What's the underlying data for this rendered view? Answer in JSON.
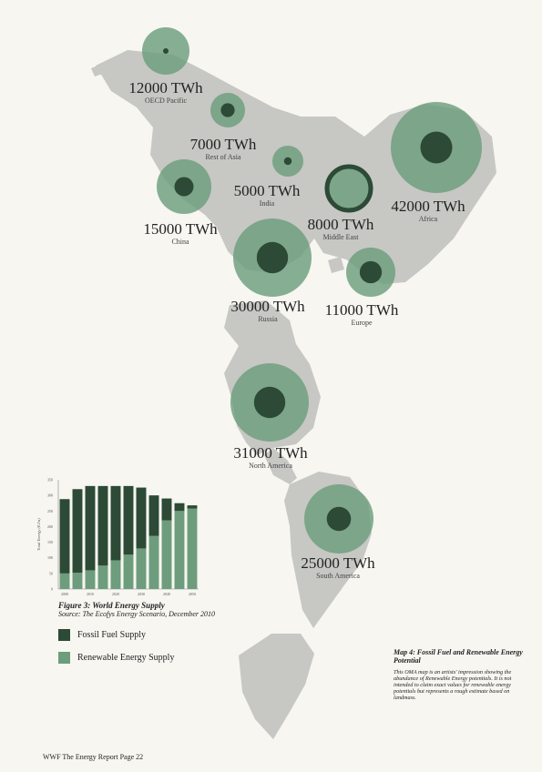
{
  "colors": {
    "background": "#f7f6f1",
    "land": "#c7c7c4",
    "renewable": "#6d9d7c",
    "fossil": "#2c4a36"
  },
  "map": {
    "regions": [
      {
        "id": "oecd-pacific",
        "value": "12000 TWh",
        "name": "OECD Pacific",
        "renewable_share": 0.1
      },
      {
        "id": "rest-of-asia",
        "value": "7000 TWh",
        "name": "Rest of Asia",
        "renewable_share": 0.4
      },
      {
        "id": "india",
        "value": "5000 TWh",
        "name": "India",
        "renewable_share": 0.25
      },
      {
        "id": "china",
        "value": "15000 TWh",
        "name": "China",
        "renewable_share": 0.35
      },
      {
        "id": "middle-east",
        "value": "8000 TWh",
        "name": "Middle East",
        "renewable_share": 0.8
      },
      {
        "id": "africa",
        "value": "42000 TWh",
        "name": "Africa",
        "renewable_share": 0.35
      },
      {
        "id": "russia",
        "value": "30000 TWh",
        "name": "Russia",
        "renewable_share": 0.4
      },
      {
        "id": "europe",
        "value": "11000 TWh",
        "name": "Europe",
        "renewable_share": 0.45
      },
      {
        "id": "north-america",
        "value": "31000 TWh",
        "name": "North America",
        "renewable_share": 0.4
      },
      {
        "id": "south-america",
        "value": "25000 TWh",
        "name": "South America",
        "renewable_share": 0.35
      }
    ]
  },
  "chart_data": {
    "type": "bar",
    "title": "Figure 3: World Energy Supply",
    "subtitle": "Source: The Ecofys Energy Scenario, December 2010",
    "ylabel": "Total Energy (EJ/a)",
    "xlabel": "",
    "ylim": [
      0,
      350
    ],
    "yticks": [
      "0",
      "50",
      "100",
      "150",
      "200",
      "250",
      "300",
      "350"
    ],
    "xtick_labels": [
      "2000",
      "2010",
      "2020",
      "2030",
      "2040",
      "2050"
    ],
    "stacked": true,
    "series": [
      {
        "name": "Renewable Energy Supply",
        "values": [
          50,
          52,
          60,
          75,
          92,
          110,
          130,
          170,
          220,
          250,
          258
        ]
      },
      {
        "name": "Fossil Fuel Supply",
        "values": [
          238,
          268,
          270,
          255,
          238,
          220,
          195,
          130,
          70,
          25,
          10
        ]
      }
    ]
  },
  "legend": {
    "fossil": "Fossil Fuel Supply",
    "renewable": "Renewable Energy Supply"
  },
  "map_note": {
    "title": "Map 4: Fossil Fuel and Renewable Energy Potential",
    "body": "This OMA map is an artists' impression showing the abundance of Renewable Energy potentials. It is not intended to claim exact values for renewable energy potentials but represents a rough estimate based on landmass."
  },
  "footer": "WWF The Energy Report   Page 22"
}
